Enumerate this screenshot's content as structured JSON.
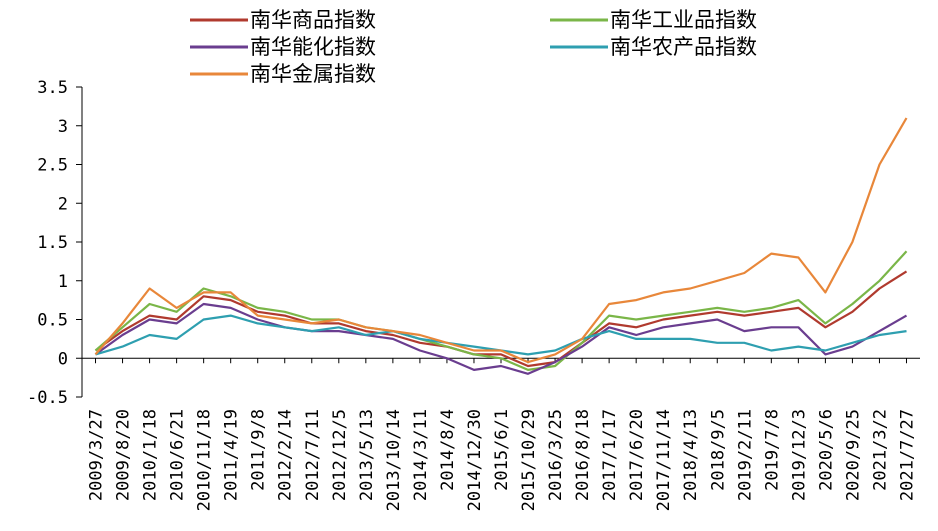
{
  "chart_data": {
    "type": "line",
    "title": "",
    "xlabel": "",
    "ylabel": "",
    "ylim": [
      -0.5,
      3.5
    ],
    "yticks": [
      -0.5,
      0,
      0.5,
      1,
      1.5,
      2,
      2.5,
      3,
      3.5
    ],
    "ytick_labels": [
      "-0.5",
      "0",
      "0.5",
      "1",
      "1.5",
      "2",
      "2.5",
      "3",
      "3.5"
    ],
    "grid": false,
    "legend_position": "top",
    "x": [
      "2009/3/27",
      "2009/8/20",
      "2010/1/18",
      "2010/6/21",
      "2010/11/18",
      "2011/4/19",
      "2011/9/8",
      "2012/2/14",
      "2012/7/11",
      "2012/12/5",
      "2013/5/13",
      "2013/10/14",
      "2014/3/11",
      "2014/8/4",
      "2014/12/30",
      "2015/6/1",
      "2015/10/29",
      "2016/3/25",
      "2016/8/18",
      "2017/1/17",
      "2017/6/20",
      "2017/11/14",
      "2018/4/13",
      "2018/9/5",
      "2019/2/11",
      "2019/7/8",
      "2019/12/3",
      "2020/5/6",
      "2020/9/25",
      "2021/3/2",
      "2021/7/27"
    ],
    "series": [
      {
        "name": "南华商品指数",
        "color": "#b03a2e",
        "values": [
          0.1,
          0.35,
          0.55,
          0.5,
          0.8,
          0.75,
          0.6,
          0.55,
          0.45,
          0.45,
          0.35,
          0.3,
          0.2,
          0.15,
          0.05,
          0.05,
          -0.1,
          -0.05,
          0.2,
          0.45,
          0.4,
          0.5,
          0.55,
          0.6,
          0.55,
          0.6,
          0.65,
          0.4,
          0.6,
          0.9,
          1.12
        ]
      },
      {
        "name": "南华工业品指数",
        "color": "#7ab648",
        "values": [
          0.1,
          0.4,
          0.7,
          0.6,
          0.9,
          0.8,
          0.65,
          0.6,
          0.5,
          0.5,
          0.4,
          0.35,
          0.25,
          0.15,
          0.05,
          0.0,
          -0.15,
          -0.1,
          0.2,
          0.55,
          0.5,
          0.55,
          0.6,
          0.65,
          0.6,
          0.65,
          0.75,
          0.45,
          0.7,
          1.0,
          1.38
        ]
      },
      {
        "name": "南华能化指数",
        "color": "#6a3d8f",
        "values": [
          0.05,
          0.3,
          0.5,
          0.45,
          0.7,
          0.65,
          0.5,
          0.4,
          0.35,
          0.35,
          0.3,
          0.25,
          0.1,
          0.0,
          -0.15,
          -0.1,
          -0.2,
          -0.05,
          0.15,
          0.4,
          0.3,
          0.4,
          0.45,
          0.5,
          0.35,
          0.4,
          0.4,
          0.05,
          0.15,
          0.35,
          0.55
        ]
      },
      {
        "name": "南华农产品指数",
        "color": "#2e9fb0",
        "values": [
          0.05,
          0.15,
          0.3,
          0.25,
          0.5,
          0.55,
          0.45,
          0.4,
          0.35,
          0.4,
          0.3,
          0.35,
          0.25,
          0.2,
          0.15,
          0.1,
          0.05,
          0.1,
          0.25,
          0.35,
          0.25,
          0.25,
          0.25,
          0.2,
          0.2,
          0.1,
          0.15,
          0.1,
          0.2,
          0.3,
          0.35
        ]
      },
      {
        "name": "南华金属指数",
        "color": "#e8873a",
        "values": [
          0.05,
          0.45,
          0.9,
          0.65,
          0.85,
          0.85,
          0.55,
          0.5,
          0.45,
          0.5,
          0.4,
          0.35,
          0.3,
          0.2,
          0.1,
          0.1,
          -0.05,
          0.05,
          0.25,
          0.7,
          0.75,
          0.85,
          0.9,
          1.0,
          1.1,
          1.35,
          1.3,
          0.85,
          1.5,
          2.5,
          3.1
        ]
      }
    ]
  }
}
